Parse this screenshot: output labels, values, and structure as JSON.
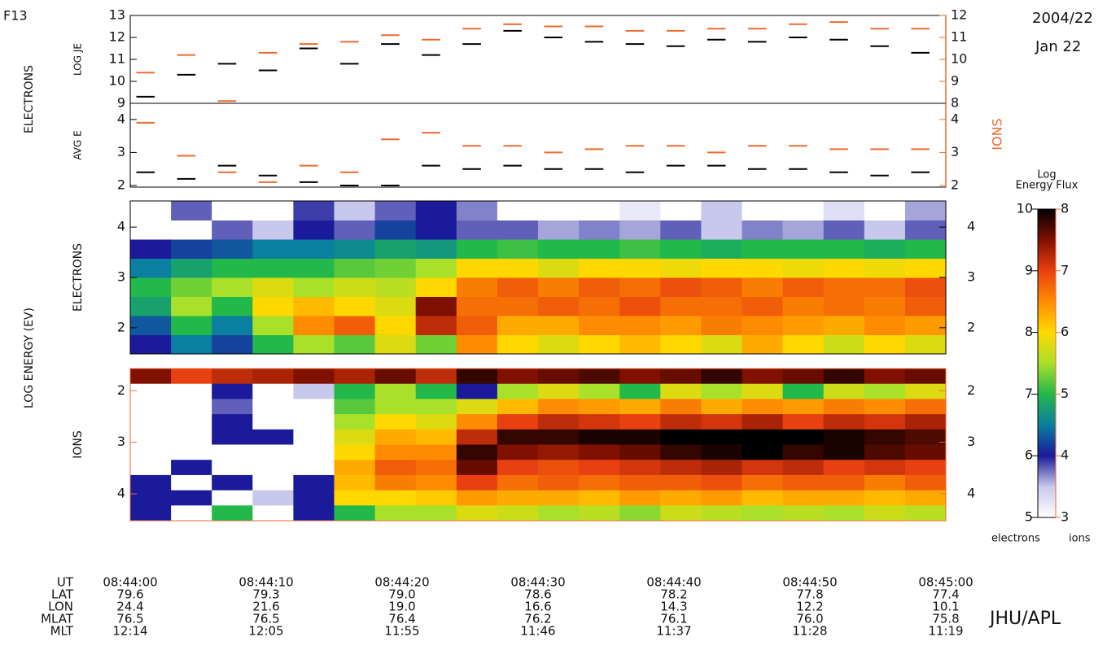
{
  "header": {
    "satellite": "F13",
    "date": "2004/22",
    "day": "Jan 22",
    "credit": "JHU/APL"
  },
  "side_labels": {
    "electrons": "ELECTRONS",
    "ions": "IONS",
    "energy": "LOG ENERGY (EV)"
  },
  "chart_data": [
    {
      "type": "dash",
      "ylabel": "LOG JE",
      "ylim": [
        9,
        13
      ],
      "yticks": [
        9,
        10,
        11,
        12,
        13
      ],
      "y2lim": [
        8,
        12
      ],
      "y2ticks": [
        8,
        9,
        10,
        11,
        12
      ],
      "series": [
        {
          "name": "electrons",
          "color": "#000000",
          "values": [
            9.3,
            10.3,
            10.8,
            10.5,
            11.5,
            10.8,
            11.7,
            11.2,
            11.7,
            12.3,
            12.0,
            11.8,
            11.7,
            11.6,
            11.9,
            11.8,
            12.0,
            11.9,
            11.6,
            11.3
          ]
        },
        {
          "name": "ions",
          "color": "#ee6a30",
          "axis": "y2",
          "values": [
            9.4,
            10.2,
            8.1,
            10.3,
            10.7,
            10.8,
            11.1,
            10.9,
            11.4,
            11.6,
            11.5,
            11.5,
            11.3,
            11.3,
            11.4,
            11.4,
            11.6,
            11.7,
            11.4,
            11.4
          ]
        }
      ]
    },
    {
      "type": "dash",
      "ylabel": "AVG E",
      "ylim": [
        1.95,
        4.49
      ],
      "yticks": [
        2,
        3,
        4
      ],
      "y2lim": [
        1.95,
        4.49
      ],
      "y2ticks": [
        2,
        3,
        4
      ],
      "series": [
        {
          "name": "electrons",
          "color": "#000000",
          "values": [
            2.4,
            2.2,
            2.6,
            2.3,
            2.1,
            2.0,
            2.0,
            2.6,
            2.5,
            2.6,
            2.5,
            2.5,
            2.4,
            2.6,
            2.6,
            2.5,
            2.5,
            2.4,
            2.3,
            2.4
          ]
        },
        {
          "name": "ions",
          "color": "#ee6a30",
          "axis": "y2",
          "values": [
            3.9,
            2.9,
            2.4,
            2.1,
            2.6,
            2.4,
            3.4,
            3.6,
            3.2,
            3.2,
            3.0,
            3.1,
            3.2,
            3.2,
            3.0,
            3.2,
            3.2,
            3.1,
            3.1,
            3.1
          ]
        }
      ]
    },
    {
      "type": "heatmap",
      "ylabel": "ELECTRONS",
      "ylim": [
        1.48,
        4.52
      ],
      "yticks": [
        2,
        3,
        4
      ],
      "zlim": [
        5,
        10
      ],
      "z": [
        [
          6,
          6.5,
          6.2,
          7,
          7.5,
          7.2,
          7.8,
          7.3,
          8.5,
          8,
          7.8,
          8,
          8.2,
          8,
          7.8,
          8.3,
          8,
          7.7,
          8,
          7.8
        ],
        [
          6.3,
          7,
          6.5,
          7.5,
          8.5,
          8.8,
          8,
          9.2,
          8.8,
          8.3,
          8.3,
          8.5,
          8.5,
          8.4,
          8.6,
          8.5,
          8.4,
          8.3,
          8.5,
          8.4
        ],
        [
          6.8,
          7.5,
          7,
          8,
          8.2,
          8,
          7.8,
          9.5,
          8.7,
          8.7,
          8.8,
          8.7,
          8.9,
          8.7,
          8.7,
          8.8,
          8.6,
          8.7,
          8.6,
          8.8
        ],
        [
          7,
          7.3,
          7.5,
          7.8,
          7.5,
          7.7,
          7.6,
          8,
          8.6,
          8.8,
          8.6,
          8.8,
          8.7,
          8.9,
          8.8,
          8.6,
          8.8,
          8.7,
          8.7,
          8.9
        ],
        [
          6.5,
          6.8,
          7,
          7,
          7,
          7.2,
          7.3,
          7.5,
          8,
          8,
          7.8,
          8,
          8,
          7.9,
          8,
          8,
          7.9,
          8,
          7.9,
          8
        ],
        [
          6,
          6.2,
          6.3,
          6.5,
          6.5,
          6.6,
          6.8,
          6.7,
          7,
          7.1,
          7,
          7,
          7.1,
          7,
          6.9,
          7,
          7,
          7,
          6.9,
          7
        ],
        [
          5,
          5,
          5.8,
          5.5,
          6,
          5.8,
          6.2,
          6,
          5.8,
          5.8,
          5.6,
          5.7,
          5.6,
          5.8,
          5.5,
          5.7,
          5.6,
          5.8,
          5.5,
          5.8
        ],
        [
          5,
          5.8,
          5,
          5,
          5.9,
          5.5,
          5.8,
          6,
          5.7,
          5,
          5,
          5,
          5.2,
          5,
          5.5,
          5,
          5,
          5.3,
          5,
          5.6
        ]
      ]
    },
    {
      "type": "heatmap",
      "ylabel": "IONS",
      "inverted": true,
      "ylim": [
        1.57,
        4.52
      ],
      "yticks": [
        2,
        3,
        4
      ],
      "zlim": [
        3,
        8
      ],
      "z": [
        [
          7.5,
          7,
          7.2,
          7.3,
          7.5,
          7.3,
          7.6,
          7.2,
          7.8,
          7.5,
          7.6,
          7.7,
          7.5,
          7.6,
          7.8,
          7.5,
          7.6,
          7.8,
          7.5,
          7.6
        ],
        [
          3,
          3,
          4,
          3,
          3.5,
          5,
          5.5,
          5,
          4,
          5.5,
          5.8,
          5.5,
          5,
          5.8,
          5.5,
          5.8,
          5,
          5.7,
          5.5,
          5.8
        ],
        [
          3,
          3,
          3.8,
          3,
          3,
          5.2,
          5.5,
          5.5,
          5.8,
          6.2,
          6.5,
          6.4,
          6.3,
          6.6,
          6.3,
          6.5,
          6.4,
          6.6,
          6.5,
          6.7
        ],
        [
          3,
          3,
          4,
          3,
          3,
          5.5,
          6,
          5.8,
          6.5,
          7,
          7.2,
          7.1,
          7,
          7.2,
          7.1,
          7.3,
          7,
          7.2,
          7.1,
          7.3
        ],
        [
          3,
          3,
          4,
          4,
          3,
          5.8,
          6.3,
          6.2,
          7.2,
          7.8,
          7.8,
          7.9,
          7.9,
          8,
          8,
          8,
          8,
          7.9,
          7.8,
          7.7
        ],
        [
          3,
          3,
          3,
          3,
          3,
          6,
          6.5,
          6.5,
          7.8,
          7.5,
          7.4,
          7.5,
          7.6,
          7.8,
          7.9,
          8,
          7.8,
          7.9,
          7.7,
          7.6
        ],
        [
          3,
          4,
          3,
          3,
          3,
          6.3,
          6.8,
          6.7,
          7.6,
          7,
          6.9,
          7,
          7.1,
          7.2,
          7.3,
          7.1,
          7.2,
          7,
          7.1,
          7
        ],
        [
          4,
          3,
          4,
          3,
          4,
          6.2,
          6.6,
          6.5,
          7,
          6.7,
          6.8,
          6.7,
          6.8,
          6.8,
          6.9,
          6.7,
          6.8,
          6.8,
          6.6,
          6.8
        ],
        [
          4,
          4,
          3,
          3.5,
          4,
          6,
          6,
          6.1,
          6.4,
          6.3,
          6.3,
          6.2,
          6.4,
          6.3,
          6.4,
          6.2,
          6.3,
          6.3,
          6.2,
          6.3
        ],
        [
          4,
          3,
          5,
          3,
          4,
          5,
          5.5,
          5.5,
          5.8,
          5.7,
          5.5,
          5.6,
          5.4,
          5.7,
          5.6,
          5.5,
          5.6,
          5.5,
          5.7,
          5.6
        ]
      ]
    },
    {
      "type": "colorbar",
      "title": [
        "Log",
        "Energy Flux"
      ],
      "ylim": [
        5,
        10
      ],
      "yticks": [
        5,
        6,
        7,
        8,
        9,
        10
      ],
      "y2lim": [
        3,
        8
      ],
      "y2ticks": [
        3,
        4,
        5,
        6,
        7,
        8
      ],
      "labels": [
        "electrons",
        "ions"
      ]
    }
  ],
  "footer": {
    "labels": [
      "UT",
      "LAT",
      "LON",
      "MLAT",
      "MLT"
    ],
    "columns": [
      [
        "08:44:00",
        "79.6",
        "24.4",
        "76.5",
        "12:14"
      ],
      [
        "08:44:10",
        "79.3",
        "21.6",
        "76.5",
        "12:05"
      ],
      [
        "08:44:20",
        "79.0",
        "19.0",
        "76.4",
        "11:55"
      ],
      [
        "08:44:30",
        "78.6",
        "16.6",
        "76.2",
        "11:46"
      ],
      [
        "08:44:40",
        "78.2",
        "14.3",
        "76.1",
        "11:37"
      ],
      [
        "08:44:50",
        "77.8",
        "12.2",
        "76.0",
        "11:28"
      ],
      [
        "08:45:00",
        "77.4",
        "10.1",
        "75.8",
        "11:19"
      ]
    ]
  }
}
